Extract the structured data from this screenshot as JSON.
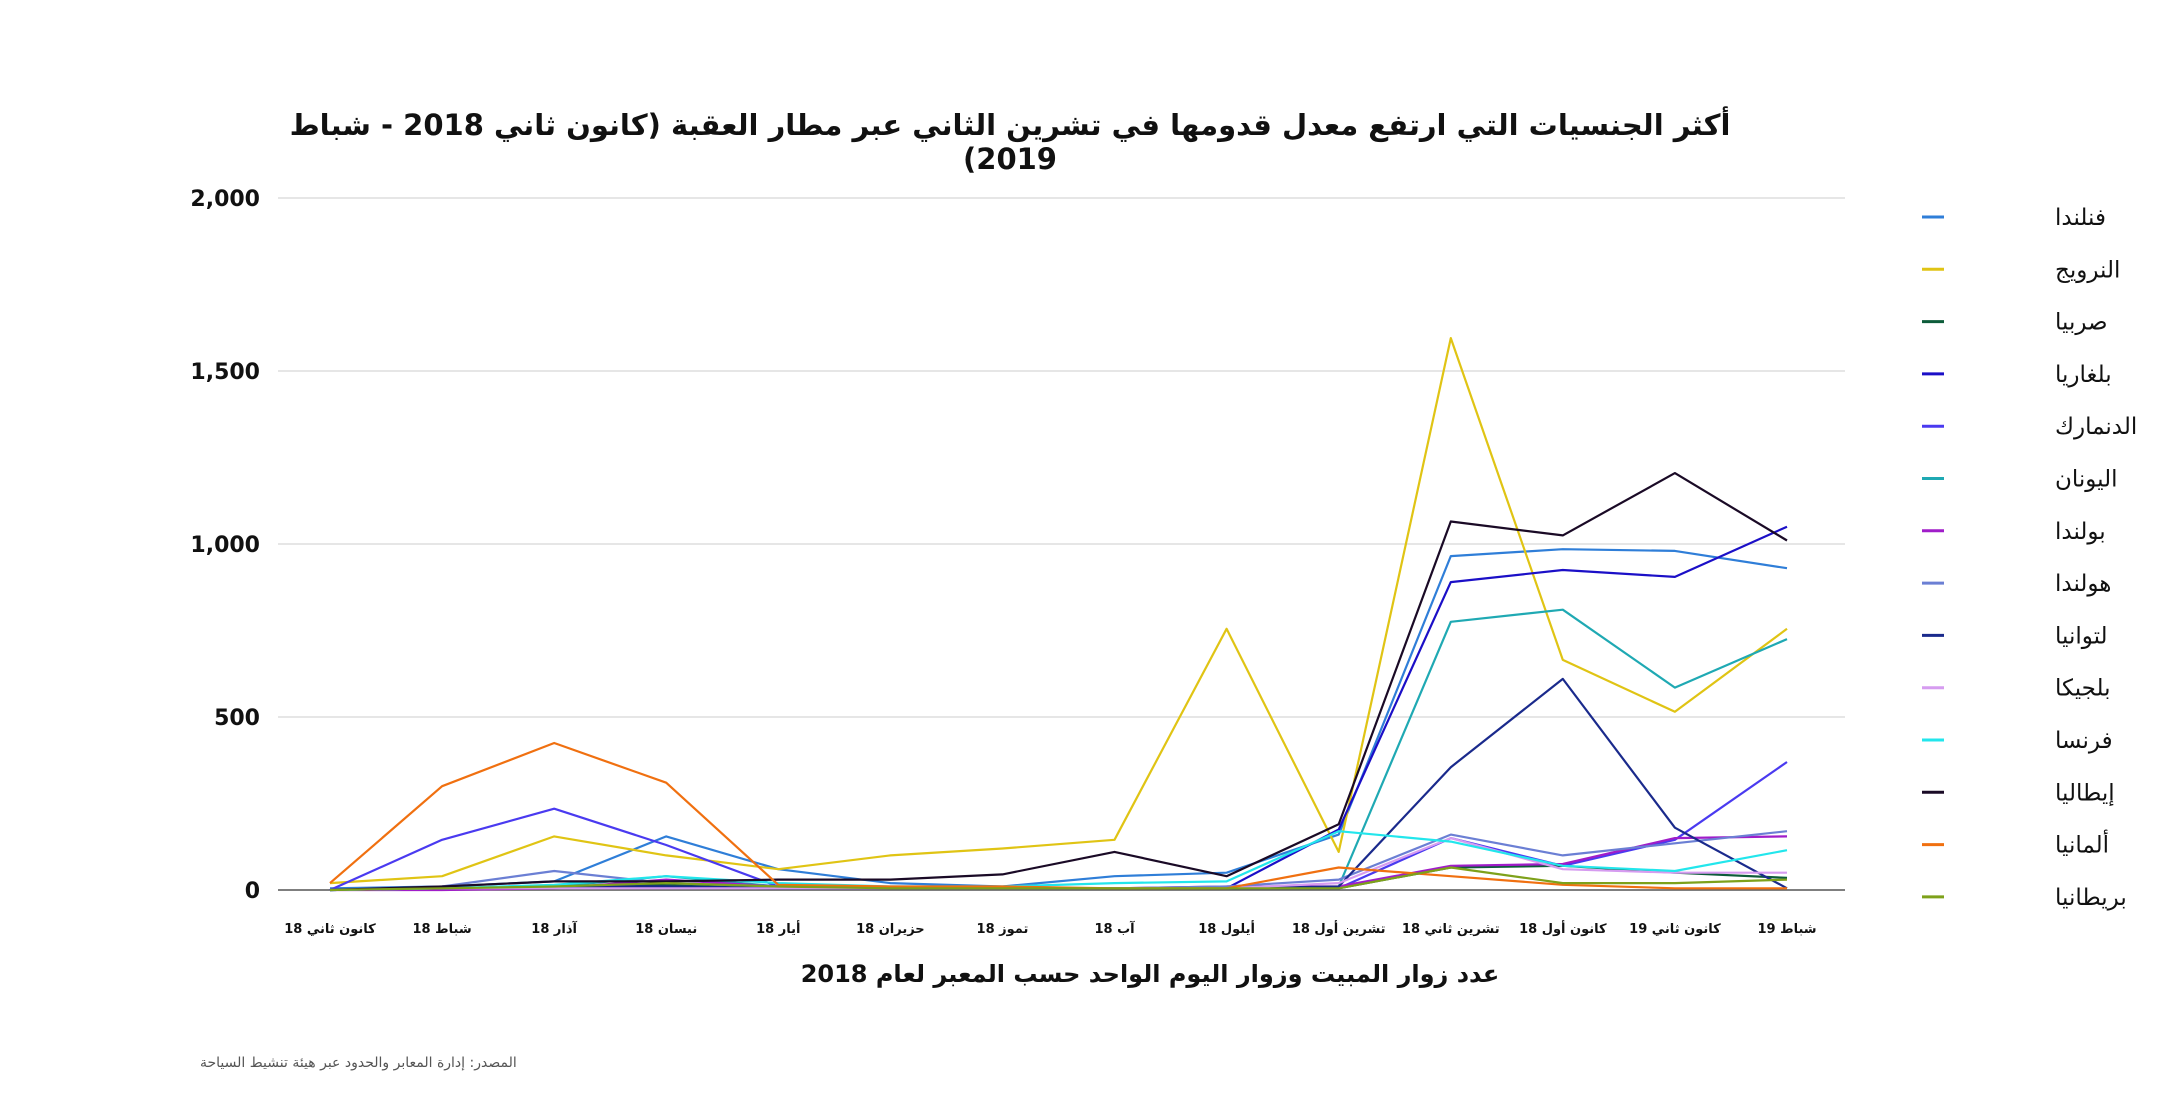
{
  "chart_data": {
    "type": "line",
    "title": "أكثر الجنسيات التي ارتفع معدل قدومها في تشرين الثاني عبر مطار العقبة (كانون ثاني 2018 - شباط 2019)",
    "xlabel": "عدد زوار المبيت وزوار اليوم الواحد حسب المعبر لعام 2018",
    "ylabel": "",
    "source": "المصدر: إدارة المعابر والحدود عبر هيئة تنشيط السياحة",
    "ylim": [
      0,
      2000
    ],
    "yticks": [
      0,
      500,
      1000,
      1500,
      2000
    ],
    "ytick_labels": [
      "0",
      "500",
      "1,000",
      "1,500",
      "2,000"
    ],
    "grid": true,
    "legend_position": "right",
    "categories": [
      "كانون ثاني 18",
      "شباط 18",
      "آذار 18",
      "نيسان 18",
      "أيار 18",
      "حزيران 18",
      "تموز 18",
      "آب 18",
      "أيلول 18",
      "تشرين أول 18",
      "تشرين ثاني 18",
      "كانون أول 18",
      "كانون ثاني 19",
      "شباط 19"
    ],
    "series": [
      {
        "name": "فنلندا",
        "color": "#2f7ed8",
        "values": [
          5,
          10,
          25,
          155,
          60,
          20,
          10,
          40,
          50,
          160,
          965,
          985,
          980,
          930
        ]
      },
      {
        "name": "النرويج",
        "color": "#e0c414",
        "values": [
          20,
          40,
          155,
          100,
          60,
          100,
          120,
          145,
          755,
          110,
          1595,
          665,
          515,
          755
        ]
      },
      {
        "name": "صربيا",
        "color": "#0d5c3a",
        "values": [
          0,
          5,
          10,
          15,
          10,
          5,
          5,
          5,
          5,
          5,
          65,
          70,
          50,
          35
        ]
      },
      {
        "name": "بلغاريا",
        "color": "#1b0fc7",
        "values": [
          0,
          5,
          10,
          10,
          5,
          5,
          5,
          5,
          5,
          175,
          890,
          925,
          905,
          1050
        ]
      },
      {
        "name": "الدنمارك",
        "color": "#4a3af0",
        "values": [
          0,
          145,
          235,
          130,
          10,
          5,
          5,
          5,
          5,
          5,
          150,
          70,
          145,
          370
        ]
      },
      {
        "name": "اليونان",
        "color": "#1fa9b3",
        "values": [
          0,
          5,
          10,
          40,
          10,
          5,
          5,
          5,
          5,
          10,
          775,
          810,
          585,
          725
        ]
      },
      {
        "name": "بولندا",
        "color": "#a01dc9",
        "values": [
          0,
          0,
          5,
          30,
          10,
          5,
          5,
          5,
          10,
          10,
          70,
          75,
          150,
          155
        ]
      },
      {
        "name": "هولندا",
        "color": "#6b7fd4",
        "values": [
          0,
          10,
          55,
          20,
          10,
          5,
          5,
          5,
          10,
          30,
          160,
          100,
          135,
          170
        ]
      },
      {
        "name": "لتوانيا",
        "color": "#1a2a8c",
        "values": [
          0,
          5,
          10,
          10,
          5,
          5,
          5,
          5,
          5,
          10,
          355,
          610,
          180,
          5
        ]
      },
      {
        "name": "بلجيكا",
        "color": "#d69cf0",
        "values": [
          0,
          5,
          5,
          5,
          5,
          5,
          5,
          5,
          5,
          20,
          150,
          60,
          50,
          50
        ]
      },
      {
        "name": "فرنسا",
        "color": "#22e6ec",
        "values": [
          0,
          5,
          15,
          40,
          20,
          10,
          10,
          20,
          25,
          170,
          140,
          70,
          55,
          115
        ]
      },
      {
        "name": "إيطاليا",
        "color": "#1a0a26",
        "values": [
          0,
          10,
          25,
          25,
          30,
          30,
          45,
          110,
          40,
          190,
          1065,
          1025,
          1205,
          1010
        ]
      },
      {
        "name": "ألمانيا",
        "color": "#f07010",
        "values": [
          20,
          300,
          425,
          310,
          15,
          10,
          10,
          5,
          5,
          65,
          40,
          15,
          5,
          5
        ]
      },
      {
        "name": "بريطانيا",
        "color": "#7ea11a",
        "values": [
          0,
          5,
          10,
          20,
          10,
          5,
          5,
          5,
          5,
          5,
          65,
          20,
          20,
          30
        ]
      }
    ]
  }
}
